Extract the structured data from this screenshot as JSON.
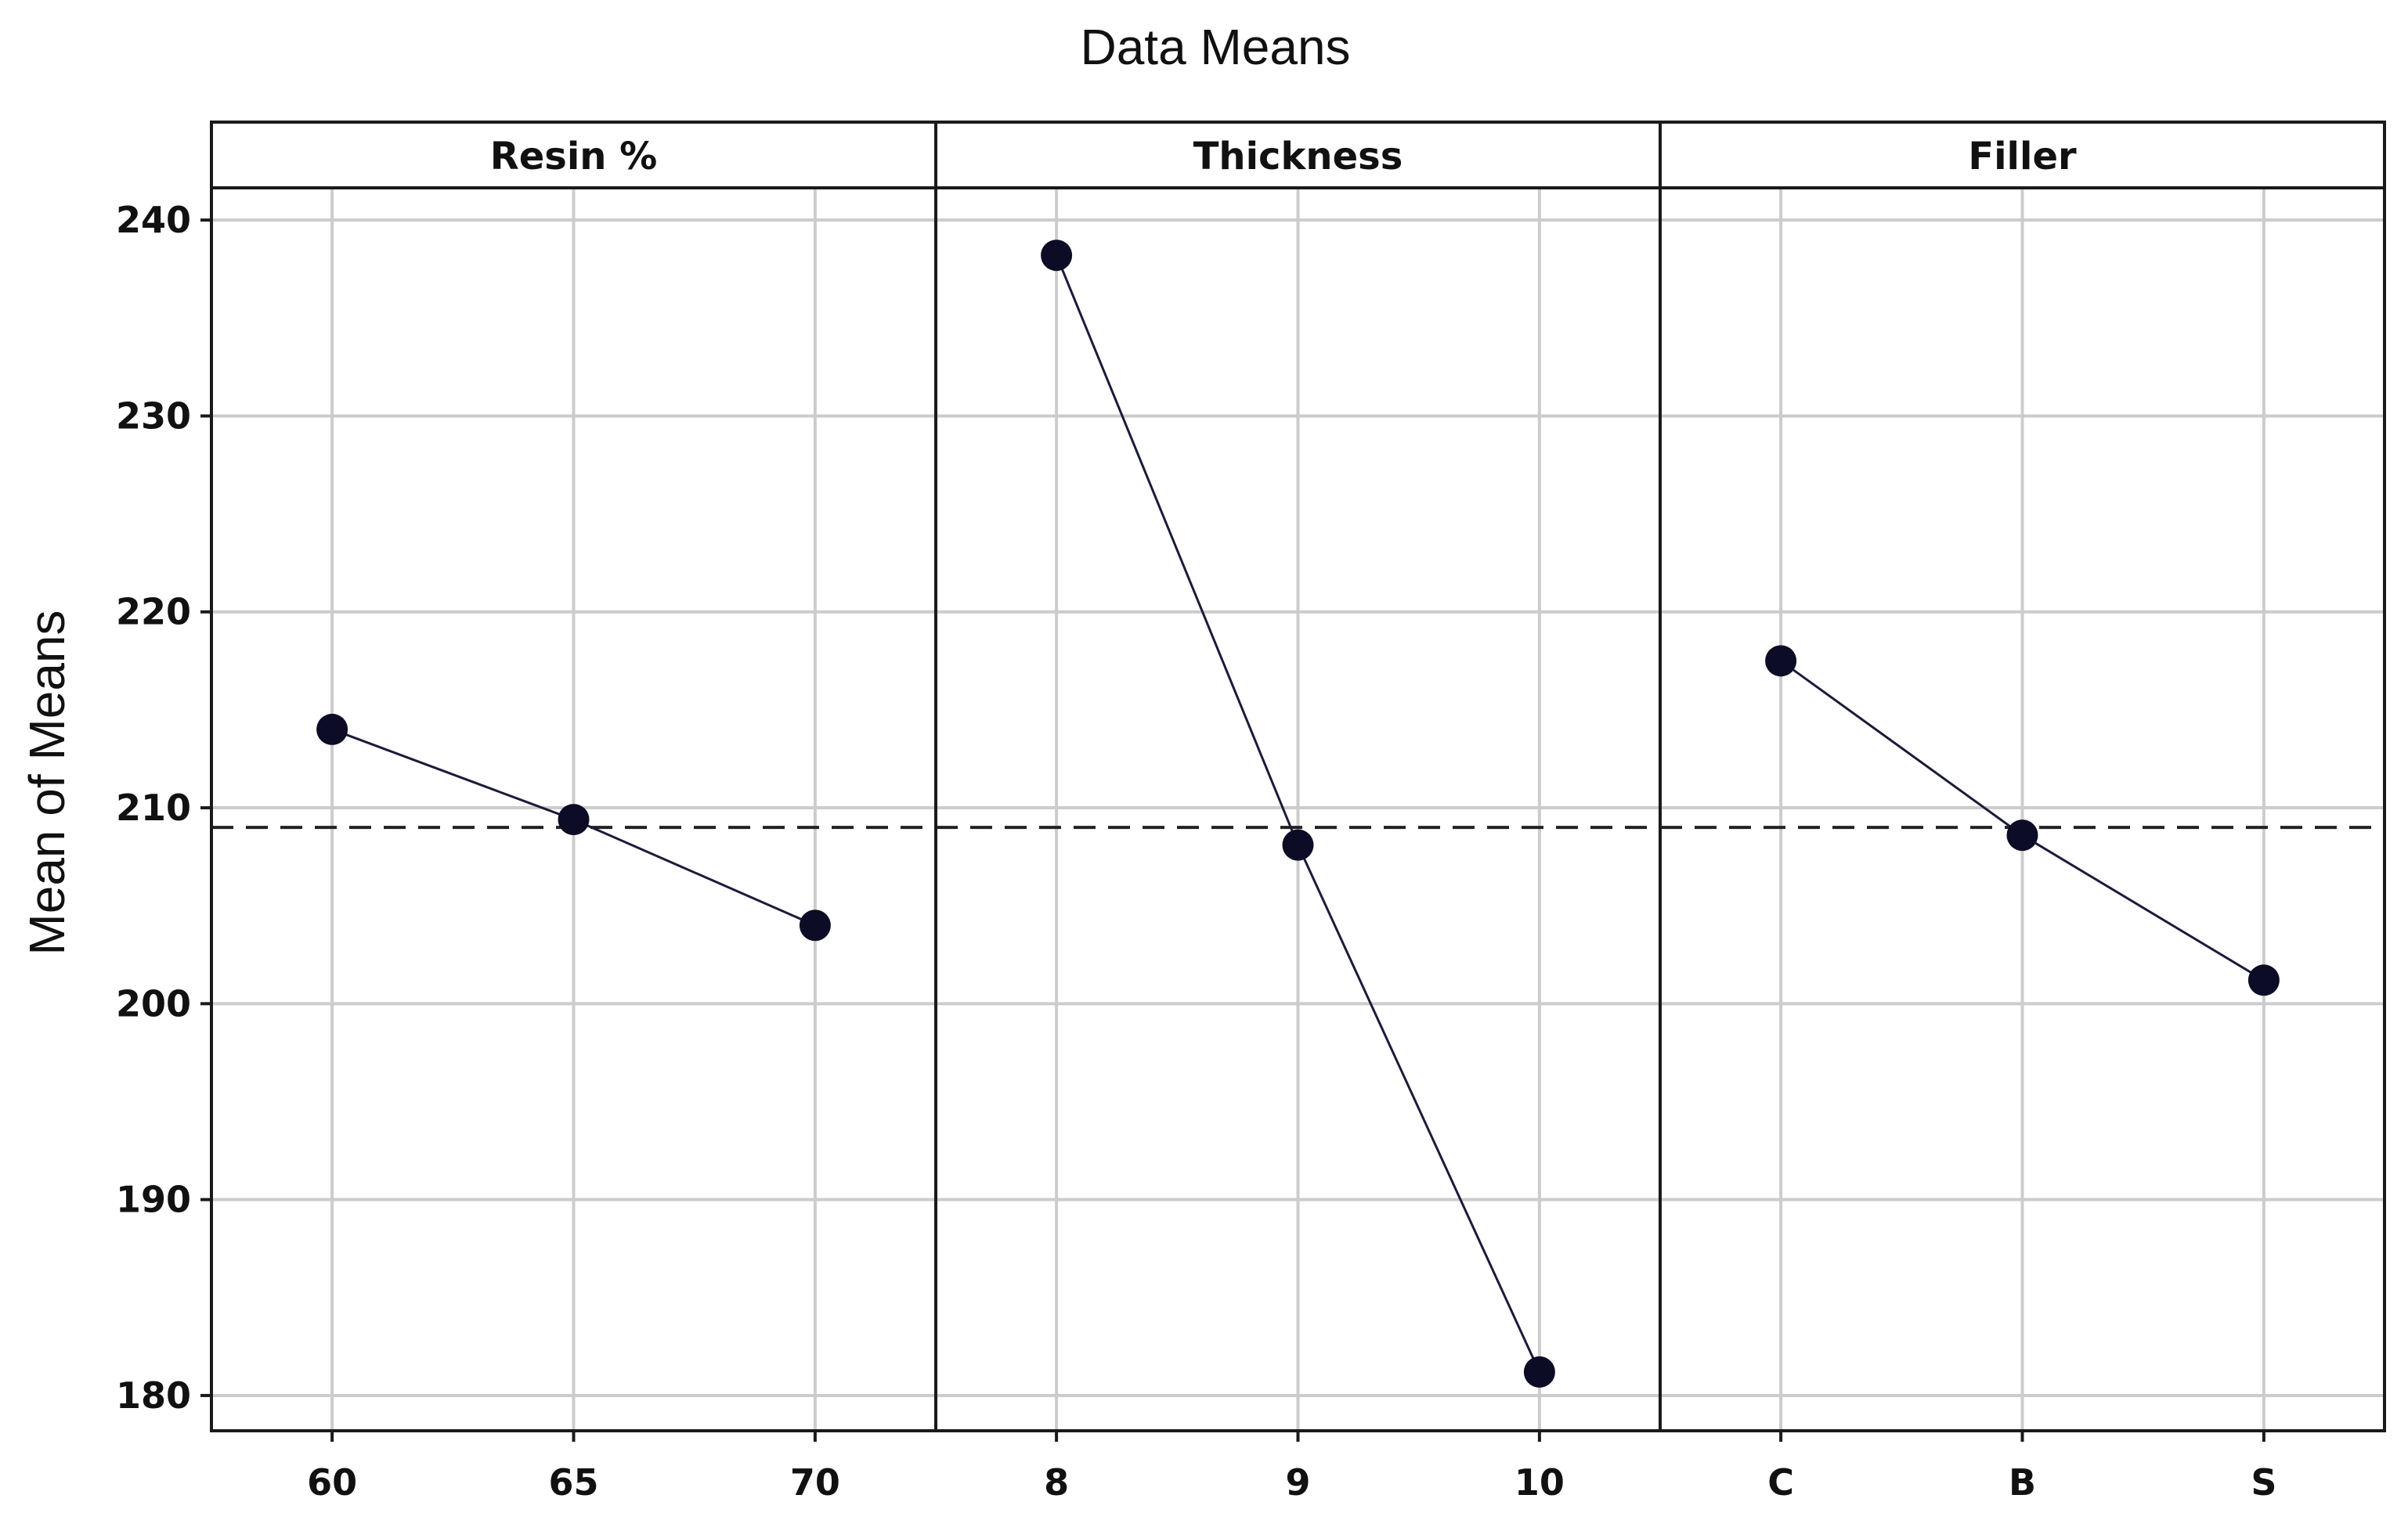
{
  "chart_data": {
    "type": "line",
    "title": "Data Means",
    "ylabel": "Mean of Means",
    "ylim": [
      178.2,
      245
    ],
    "yticks": [
      180,
      190,
      200,
      210,
      220,
      230,
      240
    ],
    "grid": true,
    "reference_line": 209,
    "marker_color": "#0c0c26",
    "line_color": "#1b1b3a",
    "panels": [
      {
        "name": "Resin %",
        "categories": [
          "60",
          "65",
          "70"
        ],
        "values": [
          214,
          209.4,
          204
        ]
      },
      {
        "name": "Thickness",
        "categories": [
          "8",
          "9",
          "10"
        ],
        "values": [
          238.2,
          208.1,
          181.2
        ]
      },
      {
        "name": "Filler",
        "categories": [
          "C",
          "B",
          "S"
        ],
        "values": [
          217.5,
          208.6,
          201.2
        ]
      }
    ]
  }
}
